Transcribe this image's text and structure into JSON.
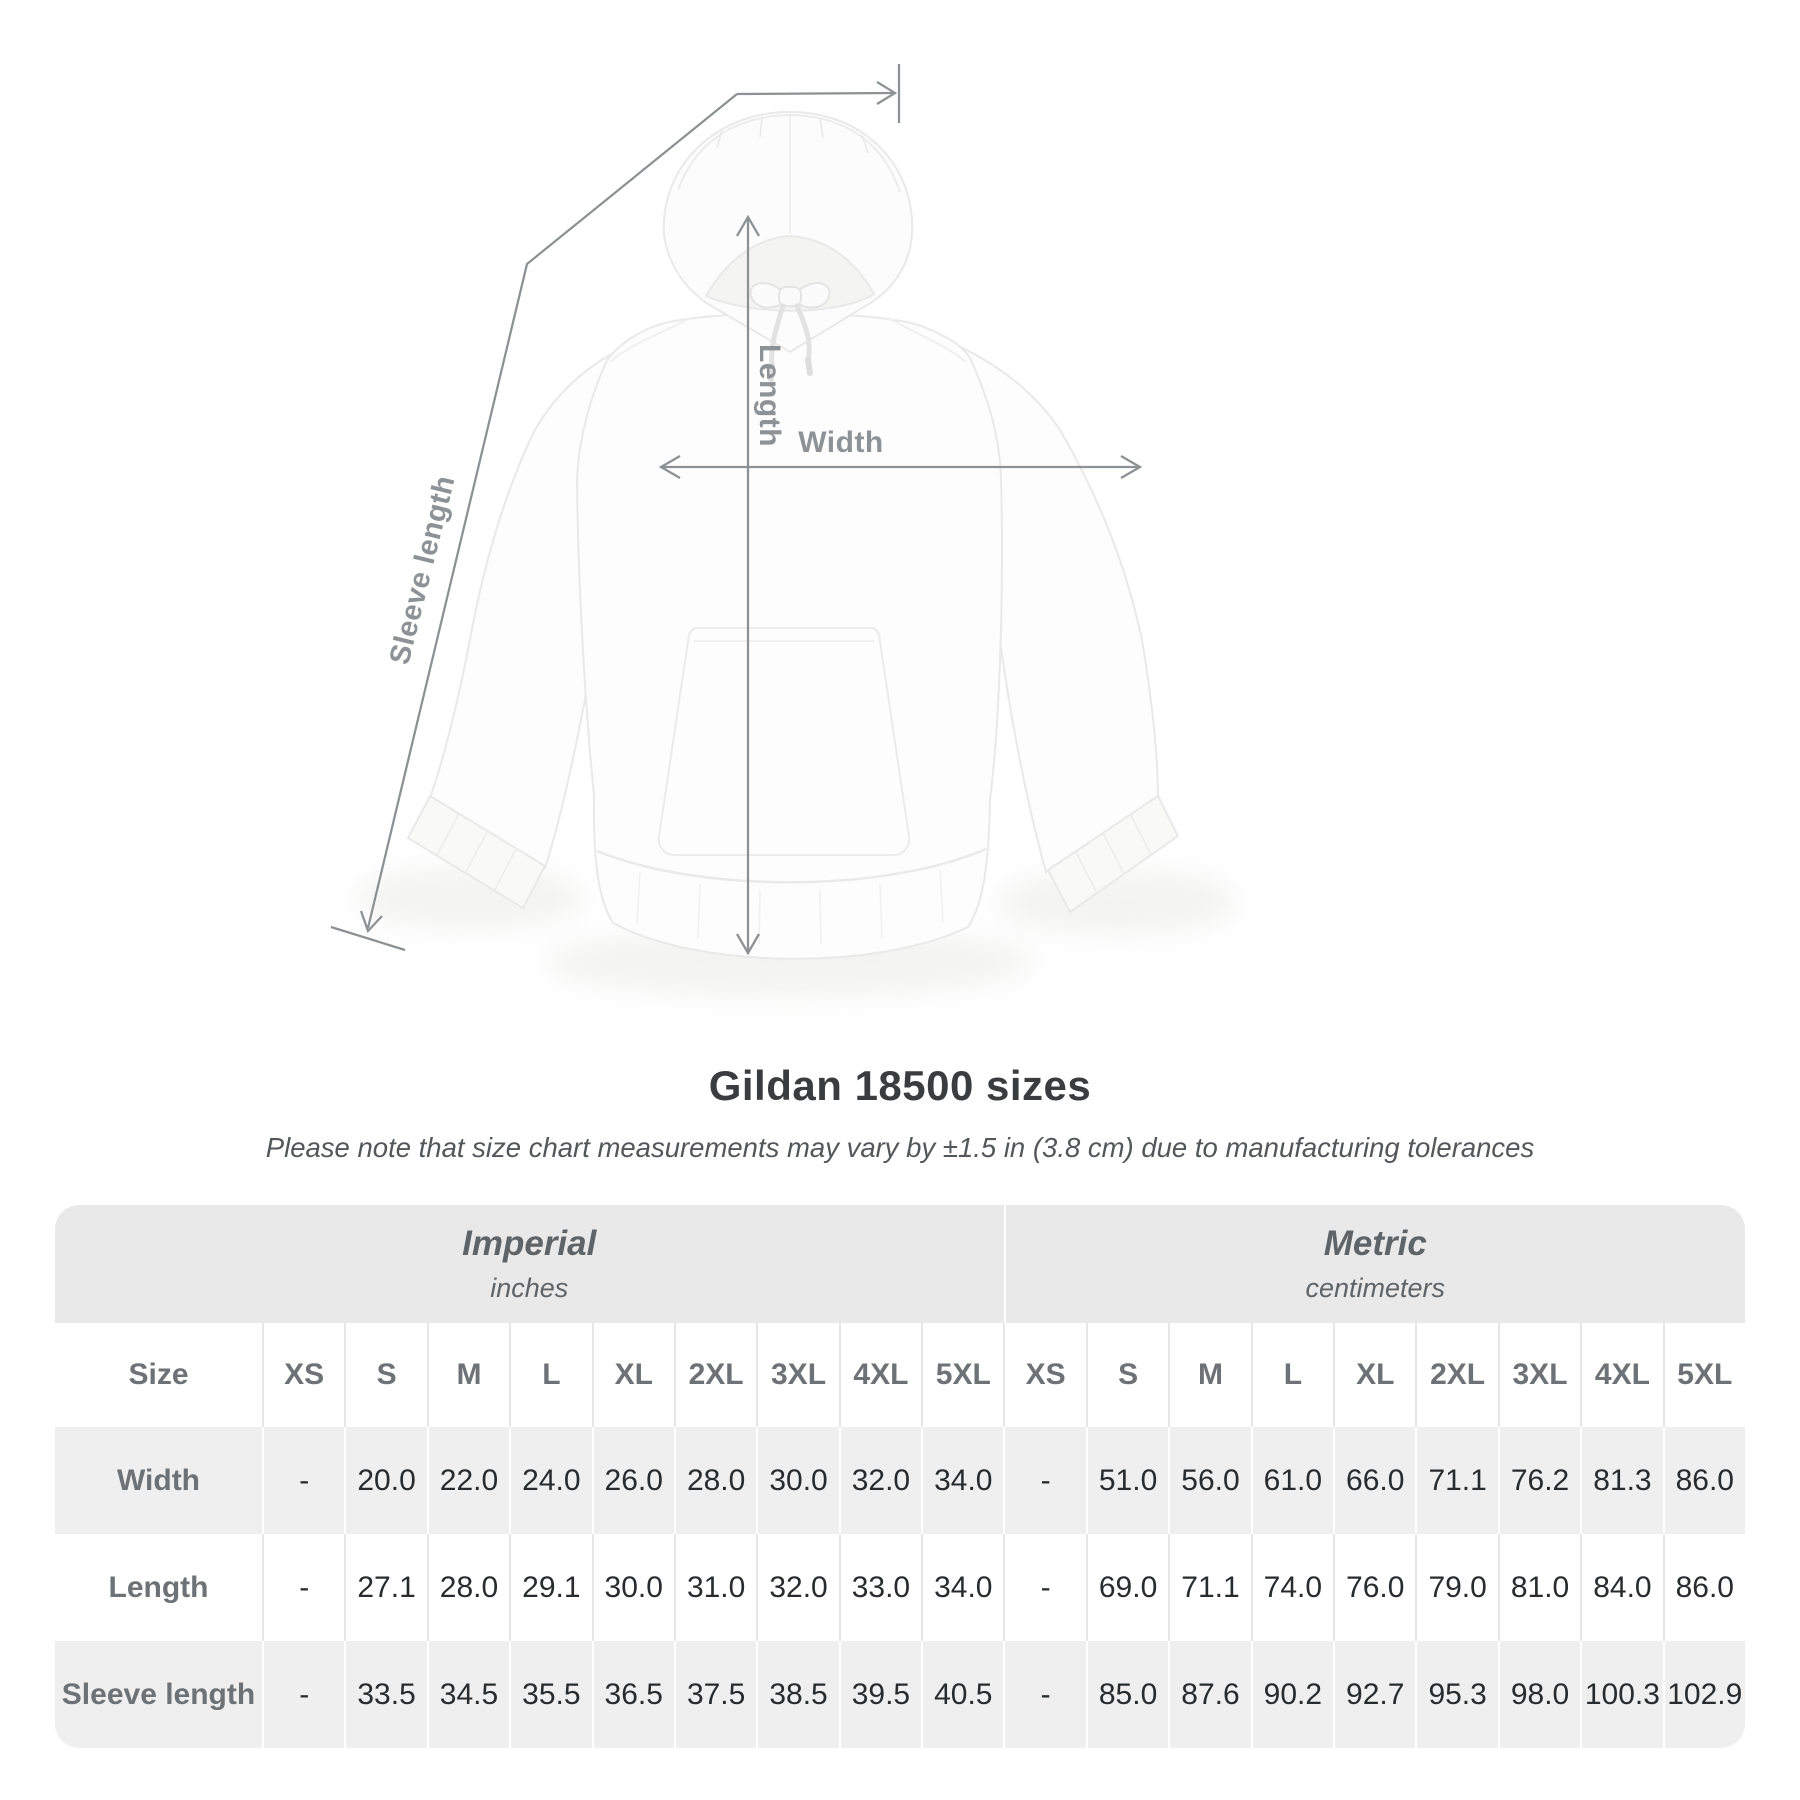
{
  "title": "Gildan 18500 sizes",
  "subtitle": "Please note that size chart measurements may vary by ±1.5 in (3.8 cm) due to manufacturing tolerances",
  "diagram": {
    "length_label": "Length",
    "width_label": "Width",
    "sleeve_label": "Sleeve length"
  },
  "table": {
    "groups": [
      {
        "name": "Imperial",
        "unit": "inches"
      },
      {
        "name": "Metric",
        "unit": "centimeters"
      }
    ],
    "size_header": "Size",
    "sizes": [
      "XS",
      "S",
      "M",
      "L",
      "XL",
      "2XL",
      "3XL",
      "4XL",
      "5XL"
    ],
    "rows": [
      {
        "label": "Width",
        "imperial": [
          "-",
          "20.0",
          "22.0",
          "24.0",
          "26.0",
          "28.0",
          "30.0",
          "32.0",
          "34.0"
        ],
        "metric": [
          "-",
          "51.0",
          "56.0",
          "61.0",
          "66.0",
          "71.1",
          "76.2",
          "81.3",
          "86.0"
        ]
      },
      {
        "label": "Length",
        "imperial": [
          "-",
          "27.1",
          "28.0",
          "29.1",
          "30.0",
          "31.0",
          "32.0",
          "33.0",
          "34.0"
        ],
        "metric": [
          "-",
          "69.0",
          "71.1",
          "74.0",
          "76.0",
          "79.0",
          "81.0",
          "84.0",
          "86.0"
        ]
      },
      {
        "label": "Sleeve length",
        "imperial": [
          "-",
          "33.5",
          "34.5",
          "35.5",
          "36.5",
          "37.5",
          "38.5",
          "39.5",
          "40.5"
        ],
        "metric": [
          "-",
          "85.0",
          "87.6",
          "90.2",
          "92.7",
          "95.3",
          "98.0",
          "100.3",
          "102.9"
        ]
      }
    ]
  },
  "colors": {
    "band_gray": "#e9e9e9",
    "stripe_gray": "#efefef",
    "header_text": "#6d7276",
    "value_text": "#292c2e",
    "annotation_gray": "#8c9194",
    "title_text": "#3a3c3e",
    "garment_fill": "#fdfdfd",
    "garment_outline": "#e9e9e9"
  }
}
